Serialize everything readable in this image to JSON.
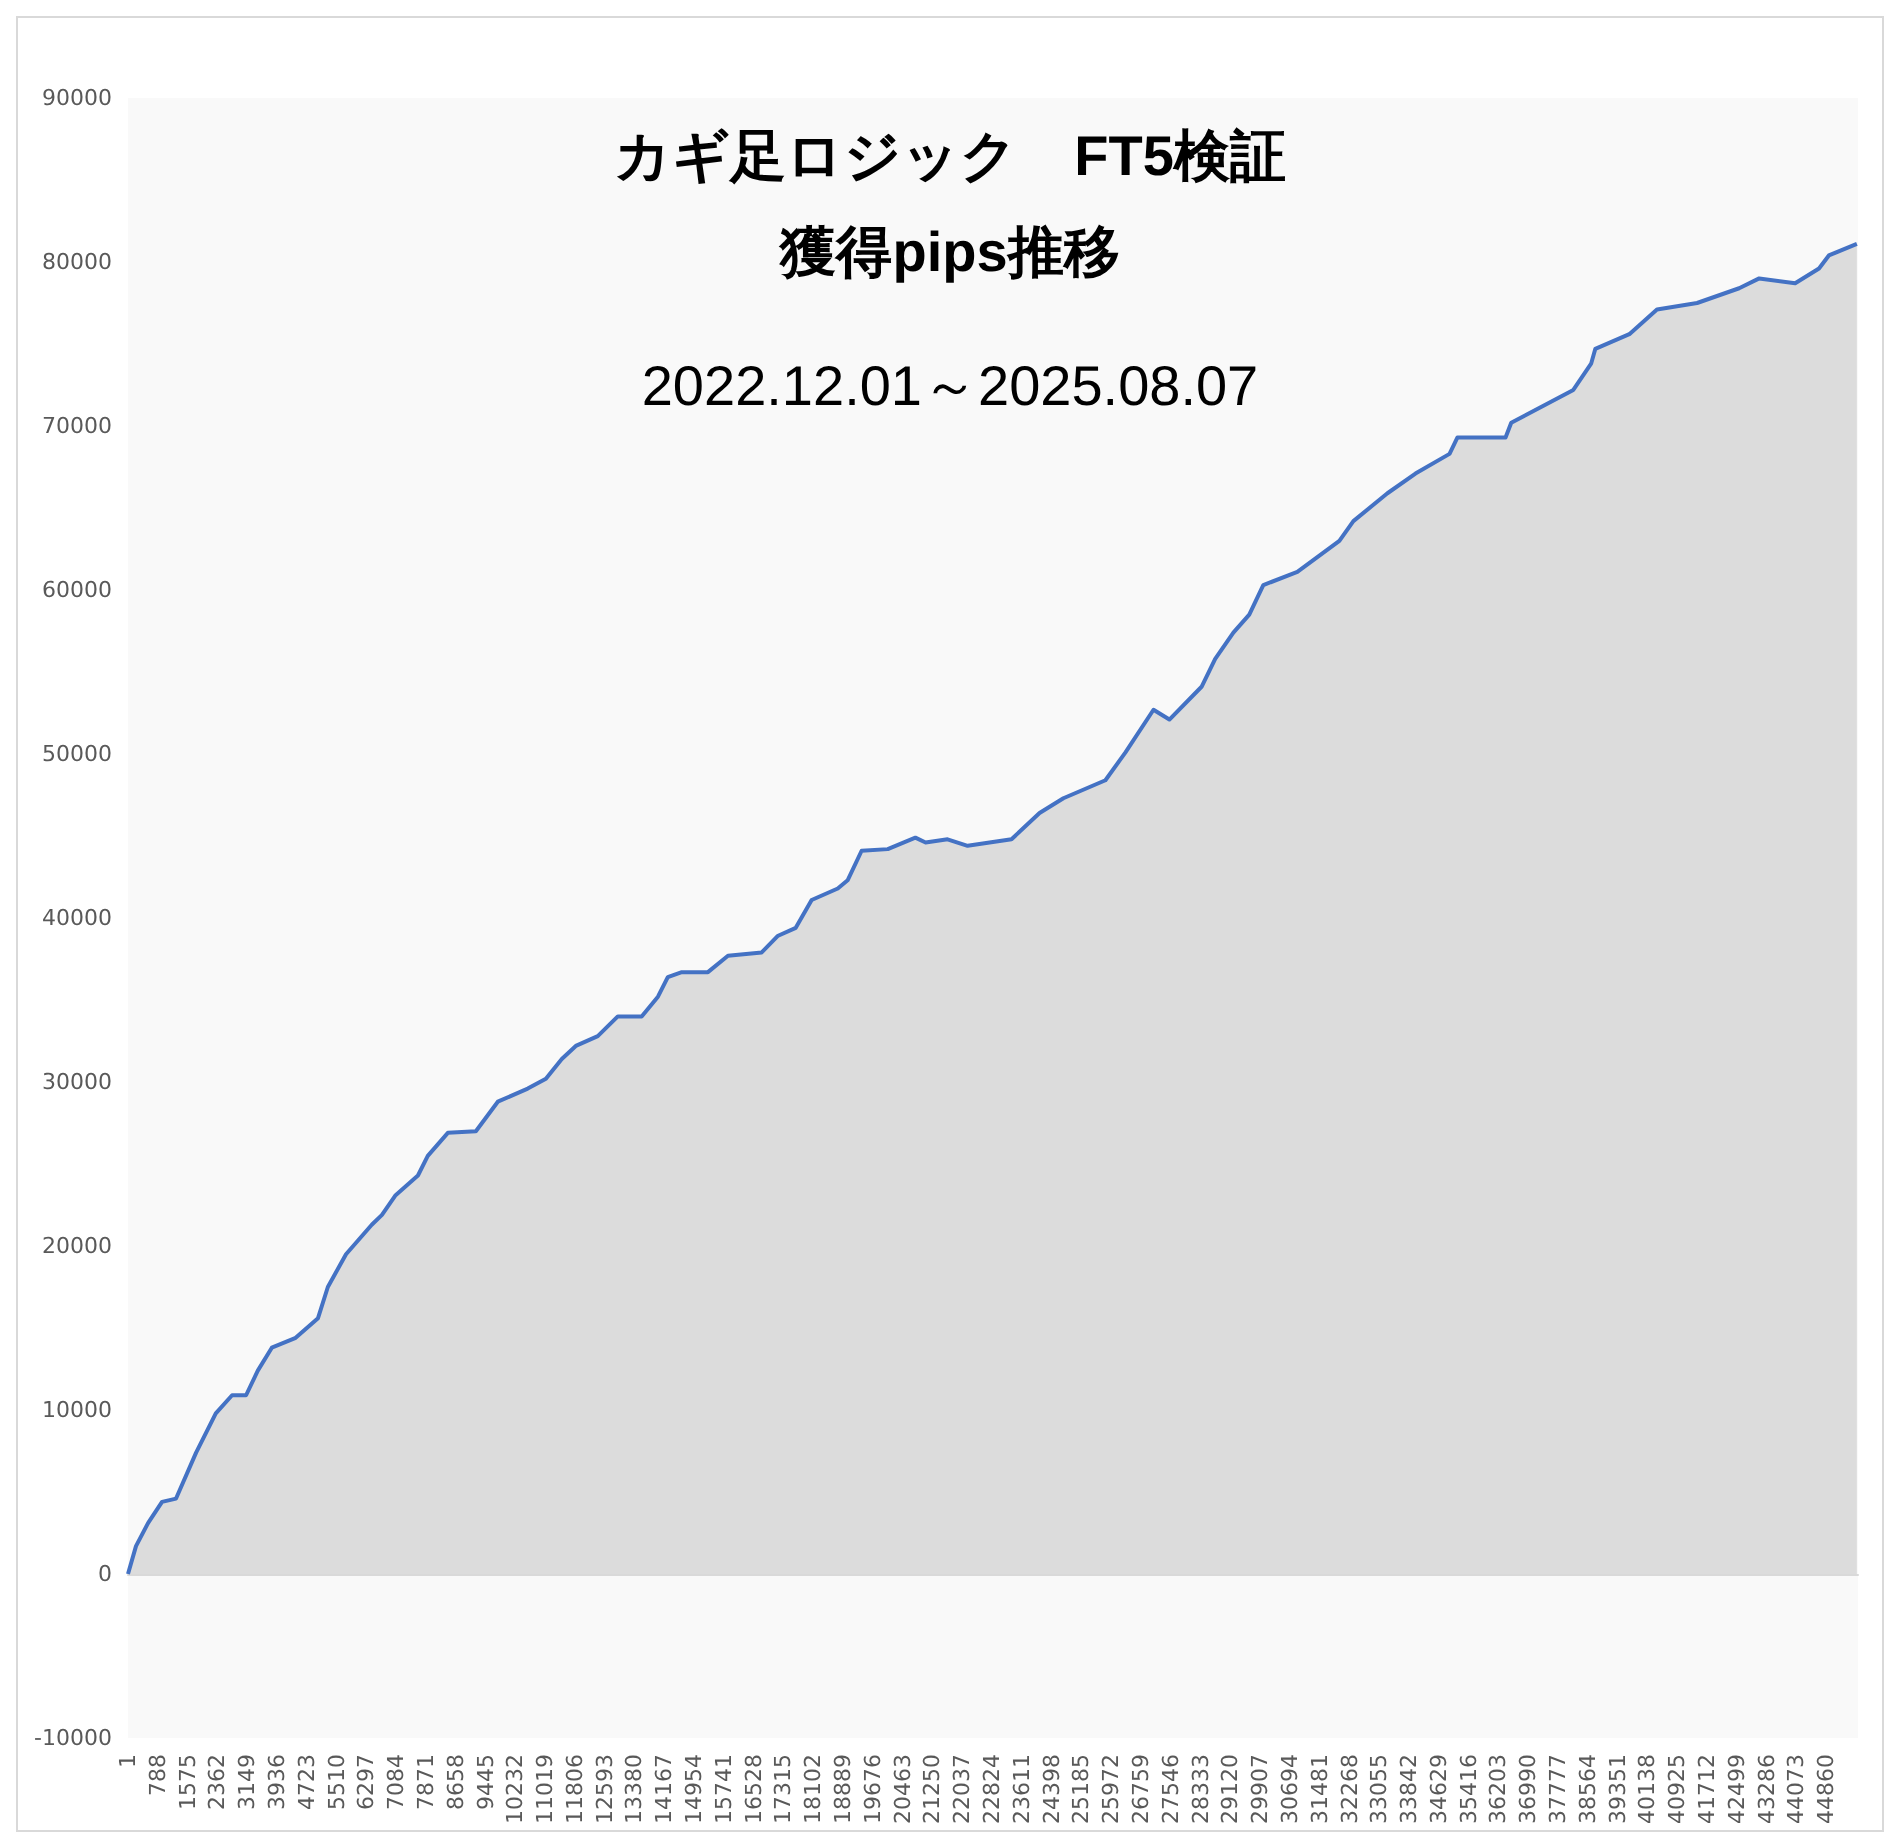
{
  "chart_data": {
    "type": "area",
    "title": "カギ足ロジック　FT5検証",
    "subtitle": "獲得pips推移",
    "annotations": [
      "2022.12.01～2025.08.07"
    ],
    "x": [
      1,
      212,
      530,
      900,
      1270,
      1800,
      2320,
      2750,
      3120,
      3430,
      3800,
      4430,
      5020,
      5280,
      5760,
      6440,
      6710,
      7070,
      7660,
      7920,
      8450,
      9190,
      9770,
      10560,
      11040,
      11460,
      11830,
      12410,
      12940,
      13570,
      14000,
      14260,
      14630,
      15320,
      15850,
      16740,
      17160,
      17640,
      18060,
      18750,
      19010,
      19380,
      20070,
      20800,
      21070,
      21650,
      22180,
      23340,
      24080,
      24710,
      25820,
      26350,
      27090,
      27510,
      28360,
      28720,
      29200,
      29620,
      29990,
      30890,
      32000,
      32370,
      33270,
      34010,
      34910,
      35120,
      36390,
      36540,
      38180,
      38650,
      38760,
      39660,
      40390,
      41450,
      42560,
      43090,
      44040,
      44670,
      44930,
      45670
    ],
    "series": [
      {
        "color": "#4472c4",
        "values": [
          0,
          1700,
          3100,
          4400,
          4600,
          7400,
          9800,
          10900,
          10900,
          12400,
          13800,
          14400,
          15600,
          17500,
          19500,
          21300,
          21900,
          23100,
          24300,
          25500,
          26900,
          27000,
          28800,
          29600,
          30200,
          31400,
          32200,
          32800,
          34000,
          34000,
          35200,
          36400,
          36700,
          36700,
          37700,
          37900,
          38900,
          39400,
          41100,
          41800,
          42300,
          44100,
          44200,
          44900,
          44600,
          44800,
          44400,
          44800,
          46400,
          47300,
          48400,
          50100,
          52700,
          52100,
          54100,
          55800,
          57400,
          58500,
          60300,
          61100,
          63000,
          64200,
          65900,
          67100,
          68300,
          69300,
          69300,
          70200,
          72200,
          73800,
          74700,
          75600,
          77100,
          77500,
          78400,
          79000,
          78700,
          79600,
          80400,
          81100
        ]
      }
    ],
    "xlim": [
      1,
      45700
    ],
    "xticks": [
      1,
      788,
      1575,
      2362,
      3149,
      3936,
      4723,
      5510,
      6297,
      7084,
      7871,
      8658,
      9445,
      10232,
      11019,
      11806,
      12593,
      13380,
      14167,
      14954,
      15741,
      16528,
      17315,
      18102,
      18889,
      19676,
      20463,
      21250,
      22037,
      22824,
      23611,
      24398,
      25185,
      25972,
      26759,
      27546,
      28333,
      29120,
      29907,
      30694,
      31481,
      32268,
      33055,
      33842,
      34629,
      35416,
      36203,
      36990,
      37777,
      38564,
      39351,
      40138,
      40925,
      41712,
      42499,
      43286,
      44073,
      44860
    ],
    "ylim": [
      -10000,
      90000
    ],
    "yticks": [
      -10000,
      0,
      10000,
      20000,
      30000,
      40000,
      50000,
      60000,
      70000,
      80000,
      90000
    ]
  }
}
